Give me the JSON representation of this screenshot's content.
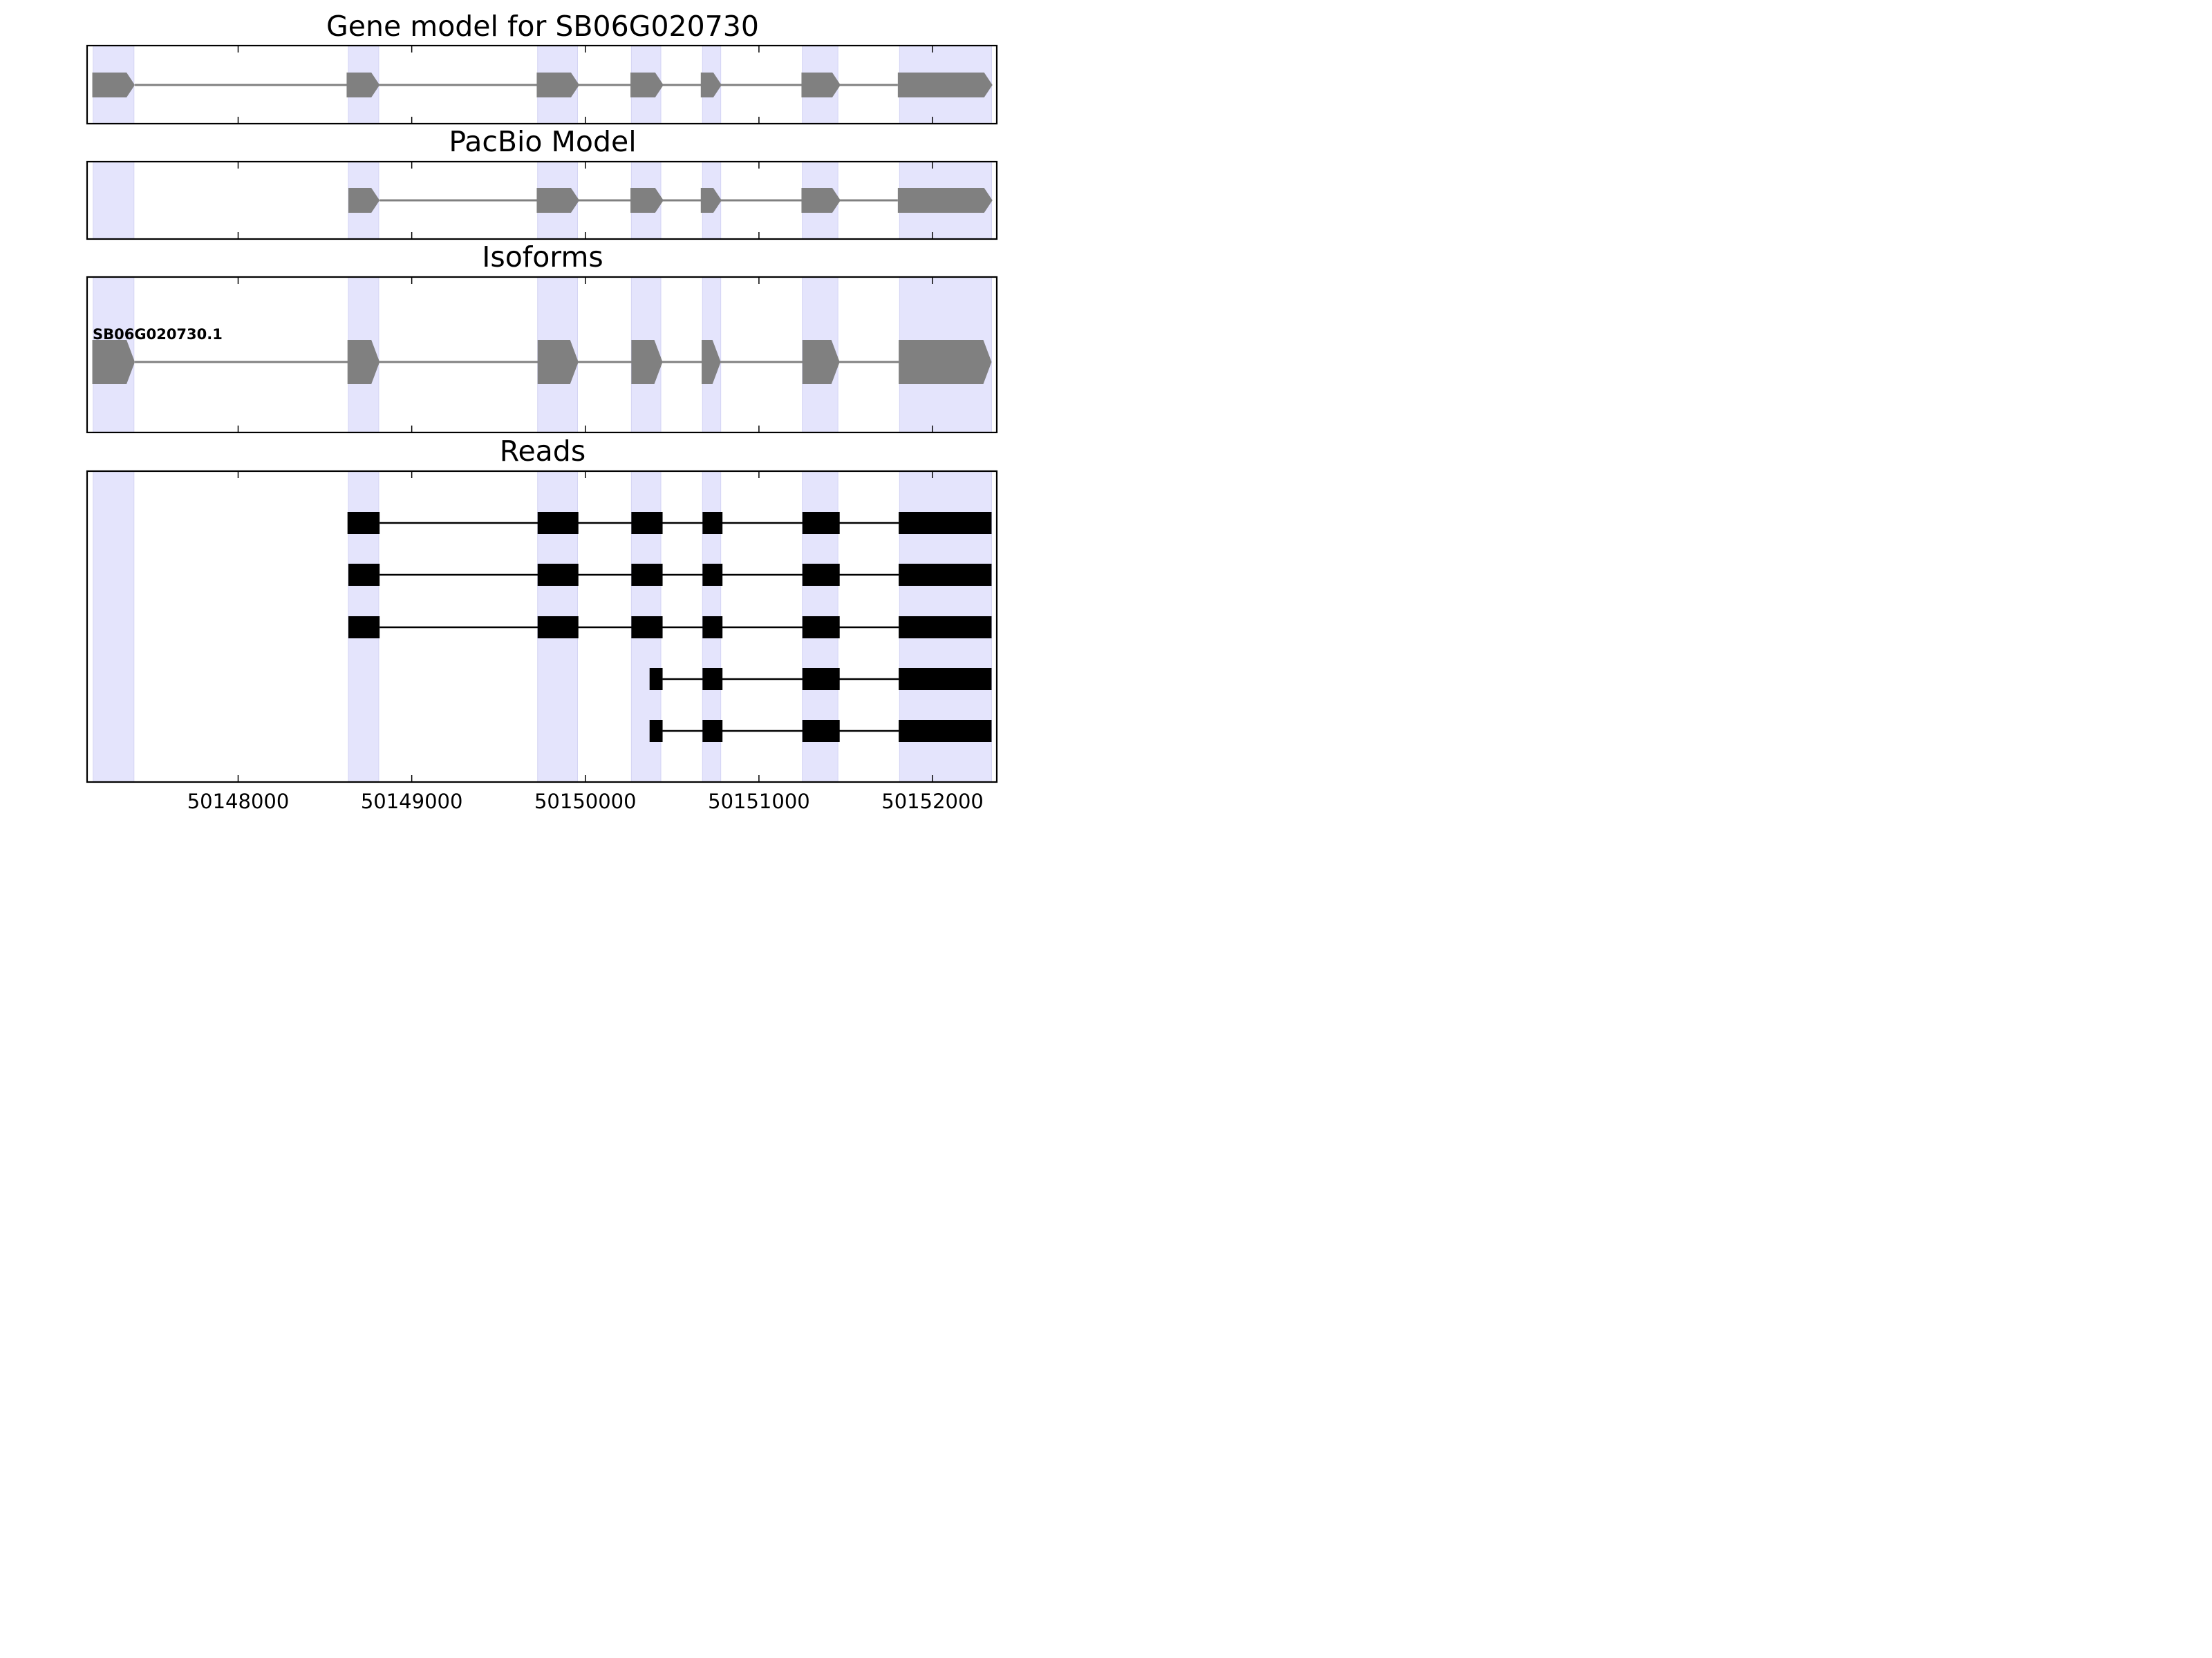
{
  "chart_data": {
    "type": "gene-model",
    "x_unit": "genomic position (bp)",
    "xlim": [
      50147130,
      50152370
    ],
    "x_ticks": [
      50148000,
      50149000,
      50150000,
      50151000,
      50152000
    ],
    "x_tick_labels": [
      "50148000",
      "50149000",
      "50150000",
      "50151000",
      "50152000"
    ],
    "highlight_color": "#e4e4fc",
    "highlight_regions": [
      [
        50147165,
        50147400
      ],
      [
        50148635,
        50148810
      ],
      [
        50149725,
        50149955
      ],
      [
        50150265,
        50150435
      ],
      [
        50150675,
        50150780
      ],
      [
        50151250,
        50151455
      ],
      [
        50151810,
        50152340
      ]
    ],
    "panels": [
      {
        "title": "Gene model for SB06G020730",
        "feature_color": "#808080",
        "tracks": [
          {
            "label": "",
            "exons": [
              [
                50147160,
                50147405
              ],
              [
                50148625,
                50148815
              ],
              [
                50149720,
                50149965
              ],
              [
                50150260,
                50150450
              ],
              [
                50150665,
                50150785
              ],
              [
                50151245,
                50151470
              ],
              [
                50151800,
                50152345
              ]
            ]
          }
        ]
      },
      {
        "title": "PacBio Model",
        "feature_color": "#808080",
        "tracks": [
          {
            "label": "",
            "exons": [
              [
                50148635,
                50148815
              ],
              [
                50149720,
                50149965
              ],
              [
                50150260,
                50150450
              ],
              [
                50150665,
                50150785
              ],
              [
                50151245,
                50151470
              ],
              [
                50151800,
                50152345
              ]
            ]
          }
        ]
      },
      {
        "title": "Isoforms",
        "feature_color": "#808080",
        "tracks": [
          {
            "label": "SB06G020730.1",
            "exons": [
              [
                50147160,
                50147405
              ],
              [
                50148630,
                50148815
              ],
              [
                50149725,
                50149960
              ],
              [
                50150265,
                50150445
              ],
              [
                50150670,
                50150780
              ],
              [
                50151250,
                50151465
              ],
              [
                50151805,
                50152340
              ]
            ]
          }
        ]
      },
      {
        "title": "Reads",
        "feature_color": "#000000",
        "reads": [
          [
            [
              50148630,
              50148815
            ],
            [
              50149725,
              50149960
            ],
            [
              50150265,
              50150445
            ],
            [
              50150675,
              50150790
            ],
            [
              50151250,
              50151465
            ],
            [
              50151805,
              50152340
            ]
          ],
          [
            [
              50148635,
              50148815
            ],
            [
              50149725,
              50149960
            ],
            [
              50150265,
              50150445
            ],
            [
              50150675,
              50150790
            ],
            [
              50151250,
              50151465
            ],
            [
              50151805,
              50152340
            ]
          ],
          [
            [
              50148635,
              50148815
            ],
            [
              50149725,
              50149960
            ],
            [
              50150265,
              50150445
            ],
            [
              50150675,
              50150790
            ],
            [
              50151250,
              50151465
            ],
            [
              50151805,
              50152340
            ]
          ],
          [
            [
              50150370,
              50150445
            ],
            [
              50150675,
              50150790
            ],
            [
              50151250,
              50151465
            ],
            [
              50151805,
              50152340
            ]
          ],
          [
            [
              50150370,
              50150445
            ],
            [
              50150675,
              50150790
            ],
            [
              50151250,
              50151465
            ],
            [
              50151805,
              50152340
            ]
          ]
        ]
      }
    ]
  }
}
